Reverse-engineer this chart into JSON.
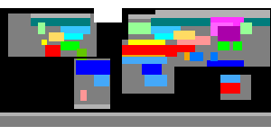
{
  "background_color": "#000000",
  "figsize": [
    3.0,
    1.5
  ],
  "dpi": 100,
  "colors": {
    "ocean": [
      0,
      0,
      0
    ],
    "land": [
      0.5,
      0.5,
      0.5
    ],
    "Af": [
      0,
      0,
      1
    ],
    "Am": [
      0,
      0.47,
      1
    ],
    "Aw": [
      0.27,
      0.66,
      0.98
    ],
    "BWh": [
      1,
      0,
      0
    ],
    "BWk": [
      1,
      0.59,
      0.59
    ],
    "BSh": [
      0.96,
      0.65,
      0
    ],
    "BSk": [
      1,
      0.86,
      0.39
    ],
    "Csa": [
      1,
      1,
      0
    ],
    "Csb": [
      0.78,
      0.78,
      0
    ],
    "Cwa": [
      0.59,
      1,
      0
    ],
    "Cwb": [
      0.39,
      0.78,
      0
    ],
    "Cfa": [
      0,
      1,
      0
    ],
    "Cfb": [
      0.59,
      1,
      0.59
    ],
    "Cfc": [
      0.39,
      1,
      0.39
    ],
    "Dsa": [
      1,
      0,
      1
    ],
    "Dsb": [
      0.78,
      0,
      0.78
    ],
    "Dfa": [
      0,
      1,
      1
    ],
    "Dfb": [
      0.22,
      0.78,
      1
    ],
    "Dfc": [
      0,
      0.49,
      0.49
    ],
    "Dfd": [
      0,
      0.27,
      0.37
    ],
    "Dwa": [
      0.67,
      0,
      0.67
    ],
    "Dwb": [
      1,
      0.39,
      1
    ],
    "Dwc": [
      1,
      0.2,
      1
    ],
    "ET": [
      0.7,
      0.7,
      0.7
    ],
    "EF": [
      1,
      1,
      1
    ]
  }
}
